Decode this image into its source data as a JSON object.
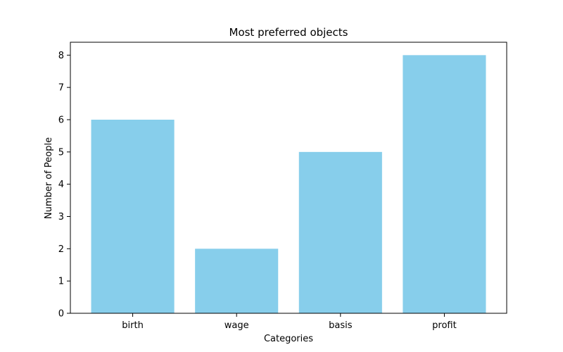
{
  "chart_data": {
    "type": "bar",
    "title": "Most preferred objects",
    "xlabel": "Categories",
    "ylabel": "Number of People",
    "categories": [
      "birth",
      "wage",
      "basis",
      "profit"
    ],
    "values": [
      6,
      2,
      5,
      8
    ],
    "ylim": [
      0,
      8.4
    ],
    "yticks": [
      0,
      1,
      2,
      3,
      4,
      5,
      6,
      7,
      8
    ],
    "bar_color": "#87ceeb",
    "grid": false,
    "legend": "none"
  }
}
